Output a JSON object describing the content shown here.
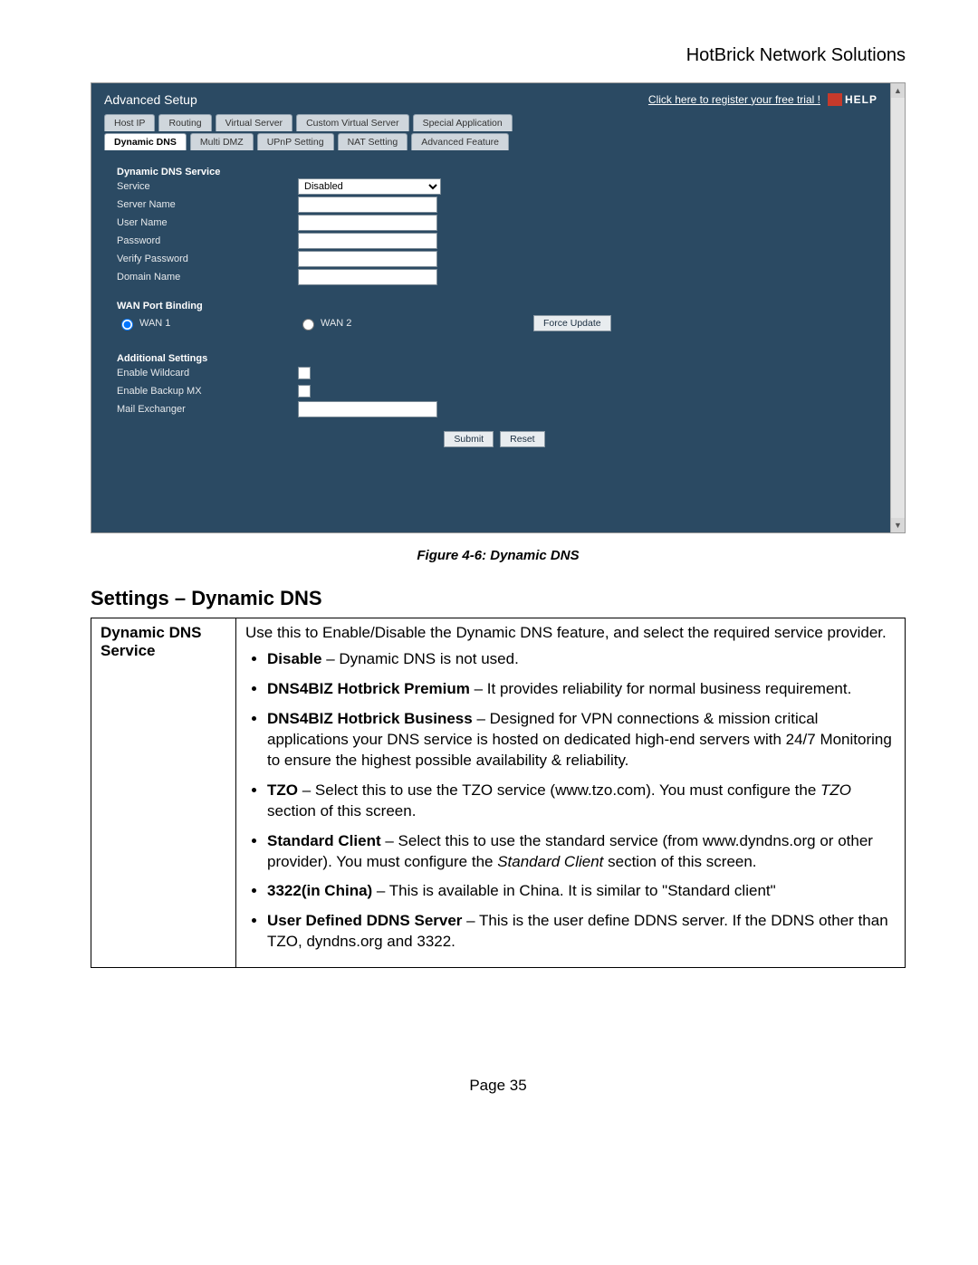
{
  "doc_header": "HotBrick Network Solutions",
  "app": {
    "title": "Advanced Setup",
    "register_link": "Click here to register your free trial !",
    "help_label": "HELP",
    "tabs_row1": [
      "Host IP",
      "Routing",
      "Virtual Server",
      "Custom Virtual Server",
      "Special Application"
    ],
    "tabs_row2": [
      "Dynamic DNS",
      "Multi DMZ",
      "UPnP Setting",
      "NAT Setting",
      "Advanced Feature"
    ],
    "active_tab": "Dynamic DNS",
    "section1": {
      "heading": "Dynamic DNS Service",
      "service_label": "Service",
      "service_value": "Disabled",
      "server_name_label": "Server Name",
      "user_name_label": "User Name",
      "password_label": "Password",
      "verify_password_label": "Verify Password",
      "domain_name_label": "Domain Name"
    },
    "section2": {
      "heading": "WAN Port Binding",
      "wan1_label": "WAN 1",
      "wan2_label": "WAN 2",
      "force_update_btn": "Force Update"
    },
    "section3": {
      "heading": "Additional Settings",
      "enable_wildcard_label": "Enable Wildcard",
      "enable_backup_mx_label": "Enable Backup MX",
      "mail_exchanger_label": "Mail Exchanger"
    },
    "buttons": {
      "submit": "Submit",
      "reset": "Reset"
    }
  },
  "figure_caption": "Figure 4-6: Dynamic DNS",
  "settings_heading": "Settings – Dynamic DNS",
  "table": {
    "left": "Dynamic DNS Service",
    "intro": "Use this to Enable/Disable the Dynamic DNS feature, and select the required service provider.",
    "items": [
      {
        "b": "Disable",
        "t": " – Dynamic DNS is not used."
      },
      {
        "b": "DNS4BIZ Hotbrick Premium",
        "t": " – It provides reliability for normal business requirement."
      },
      {
        "b": "DNS4BIZ Hotbrick Business",
        "t": " – Designed for VPN connections & mission critical applications your DNS service is hosted on dedicated high-end servers with 24/7 Monitoring to ensure the highest possible availability & reliability."
      },
      {
        "b": "TZO",
        "t": " – Select this to use the TZO service (www.tzo.com). You must configure the ",
        "i": "TZO",
        "t2": " section of this screen."
      },
      {
        "b": "Standard Client",
        "t": " – Select this to use the standard service (from www.dyndns.org or other provider). You must configure the ",
        "i": "Standard Client",
        "t2": " section of this screen."
      },
      {
        "b": "3322(in China)",
        "t": " – This is available in China. It is similar to \"Standard client\""
      },
      {
        "b": "User Defined DDNS Server",
        "t": " – This is the user define DDNS server. If the DDNS other than TZO, dyndns.org and 3322."
      }
    ]
  },
  "page_number": "Page 35"
}
